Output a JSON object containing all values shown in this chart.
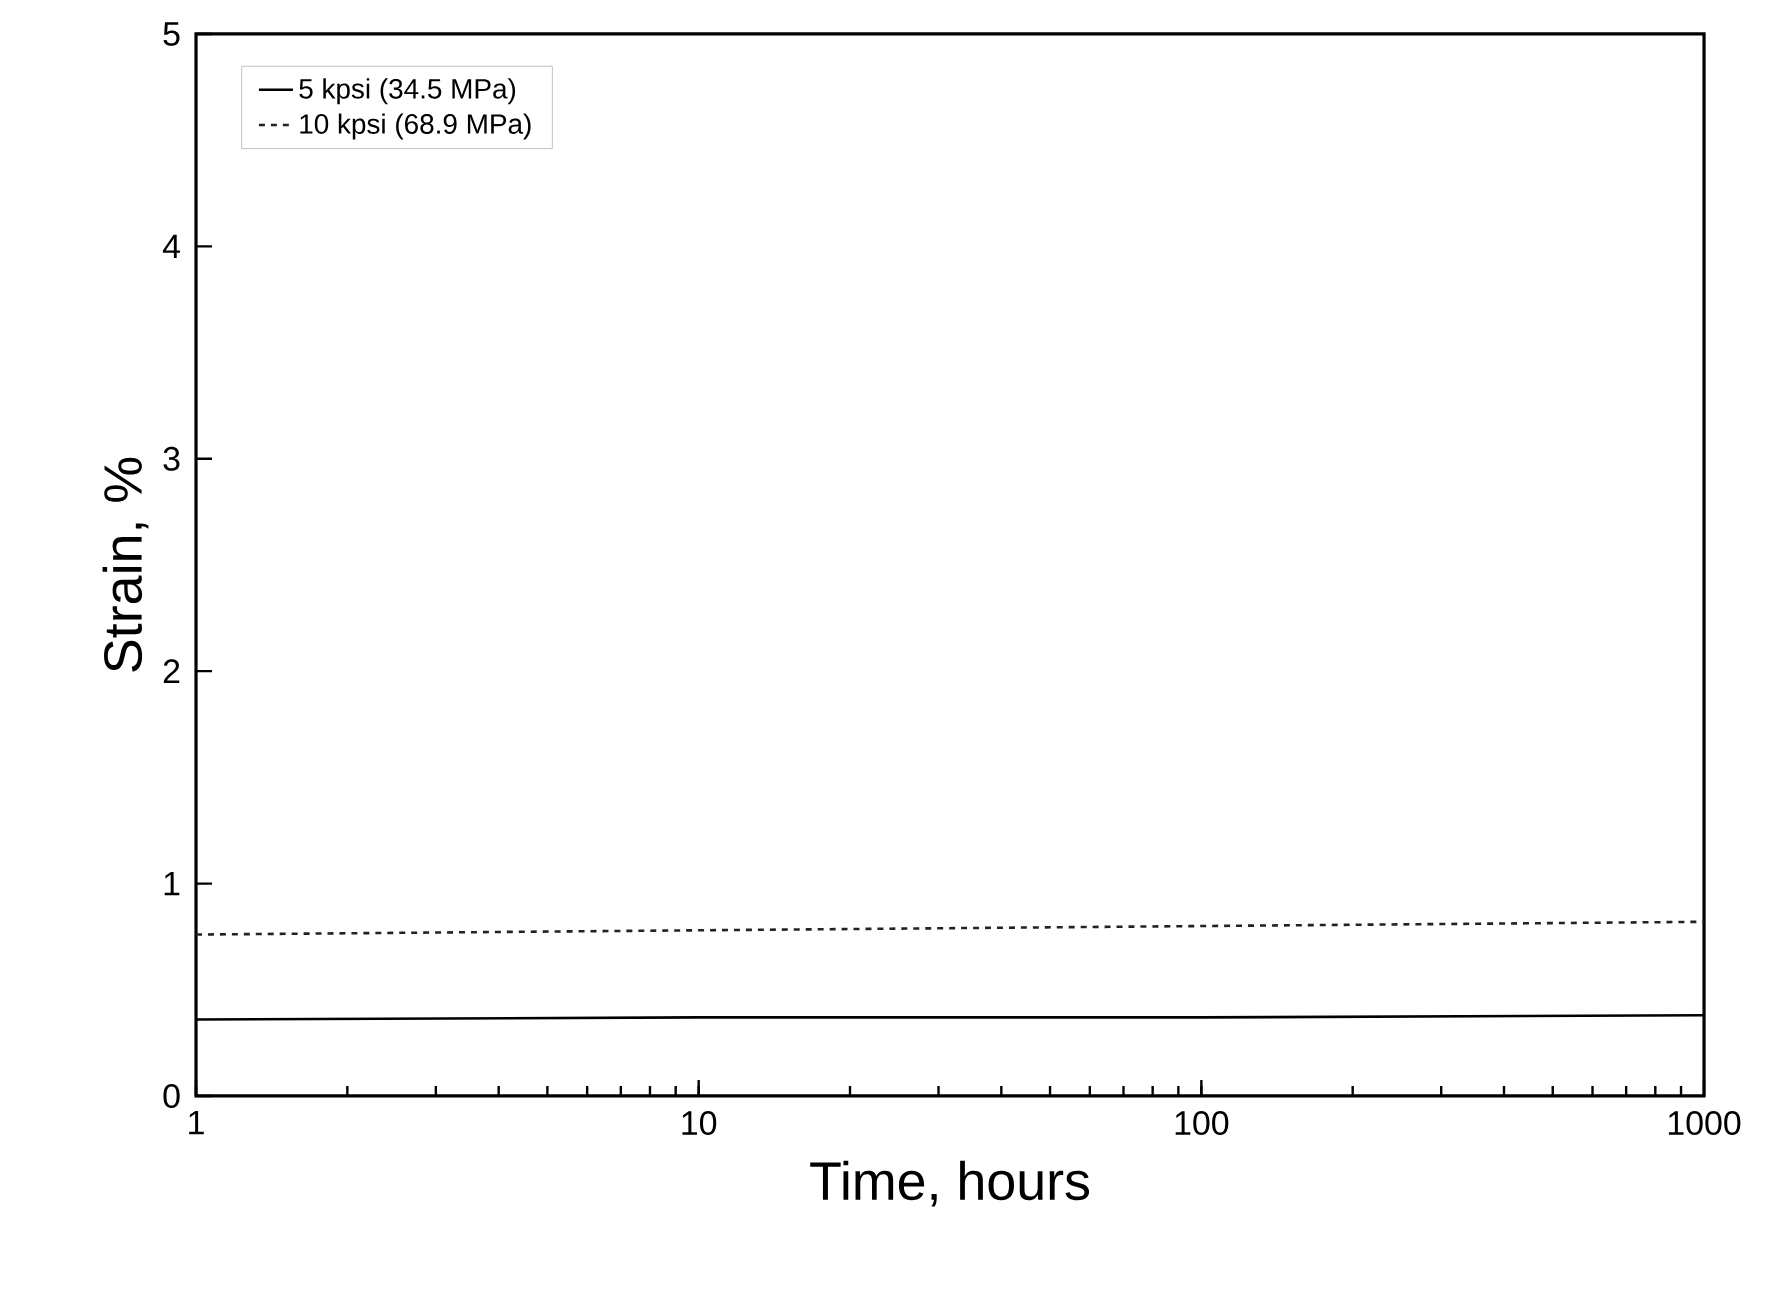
{
  "chart_data": {
    "type": "line",
    "xlabel": "Time, hours",
    "ylabel": "Strain, %",
    "log": "x",
    "xlim": [
      1,
      1000
    ],
    "ylim": [
      0,
      5
    ],
    "xticks": [
      1,
      10,
      100,
      1000
    ],
    "yticks": [
      0,
      1,
      2,
      3,
      4,
      5
    ],
    "grid": false,
    "legend": "top left",
    "marker": "none",
    "series": [
      {
        "name": "5 kpsi (34.5 MPa)",
        "color": "#000000",
        "line_style": "solid",
        "x": [
          1,
          10,
          100,
          1000
        ],
        "values": [
          0.36,
          0.37,
          0.37,
          0.38
        ]
      },
      {
        "name": "10 kpsi (68.9 MPa)",
        "color": "#222222",
        "line_style": "dashed",
        "x": [
          1,
          10,
          100,
          1000
        ],
        "values": [
          0.76,
          0.78,
          0.8,
          0.82
        ]
      }
    ]
  }
}
